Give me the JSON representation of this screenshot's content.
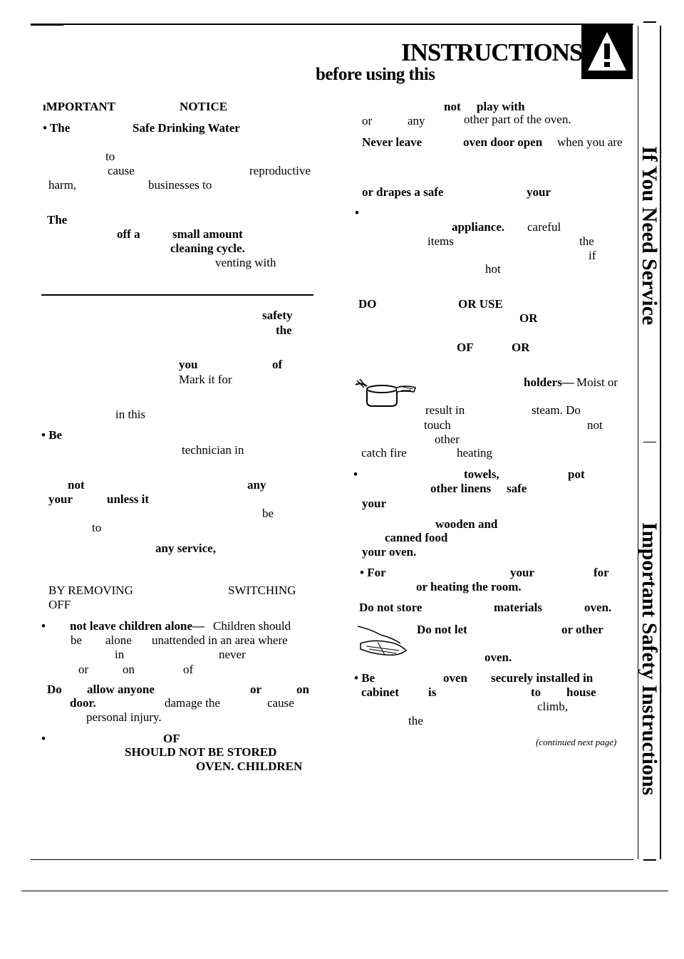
{
  "header": {
    "title": "INSTRUCTIONS",
    "subtitle": "before using this"
  },
  "warning_icon": {
    "symbol": "!"
  },
  "sidebar": {
    "service_label": "If You Need Service",
    "safety_label": "Important Safety Instructions"
  },
  "left_column": [
    {
      "text": "ıMPORTANT",
      "bold": true
    },
    {
      "text": "NOTICE",
      "bold": true
    },
    {
      "text": "• The",
      "bold": true
    },
    {
      "text": "Safe Drinking Water",
      "bold": true
    },
    {
      "text": "to",
      "bold": false
    },
    {
      "text": "cause",
      "bold": false
    },
    {
      "text": "reproductive",
      "bold": false
    },
    {
      "text": "harm,",
      "bold": false
    },
    {
      "text": "businesses to",
      "bold": false
    },
    {
      "text": "The",
      "bold": true
    },
    {
      "text": "off a",
      "bold": true
    },
    {
      "text": "small amount",
      "bold": true
    },
    {
      "text": "cleaning cycle.",
      "bold": true
    },
    {
      "text": "venting with",
      "bold": false
    },
    {
      "text": "safety",
      "bold": true
    },
    {
      "text": "the",
      "bold": true
    },
    {
      "text": "you",
      "bold": true
    },
    {
      "text": "of",
      "bold": true
    },
    {
      "text": "Mark it for",
      "bold": false
    },
    {
      "text": "in this",
      "bold": false
    },
    {
      "text": "• Be",
      "bold": true
    },
    {
      "text": "technician in",
      "bold": false
    },
    {
      "text": "not",
      "bold": true
    },
    {
      "text": "any",
      "bold": true
    },
    {
      "text": "your",
      "bold": true
    },
    {
      "text": "unless it",
      "bold": true
    },
    {
      "text": "be",
      "bold": false
    },
    {
      "text": "to",
      "bold": false
    },
    {
      "text": "any service,",
      "bold": true
    },
    {
      "text": "BY REMOVING",
      "bold": false
    },
    {
      "text": "SWITCHING",
      "bold": false
    },
    {
      "text": "OFF",
      "bold": false
    },
    {
      "text": "•",
      "bold": true
    },
    {
      "text": "not leave children alone—",
      "bold": true
    },
    {
      "text": "Children should",
      "bold": false
    },
    {
      "text": "be",
      "bold": false
    },
    {
      "text": "alone",
      "bold": false
    },
    {
      "text": "unattended in an area where",
      "bold": false
    },
    {
      "text": "in",
      "bold": false
    },
    {
      "text": "never",
      "bold": false
    },
    {
      "text": "or",
      "bold": false
    },
    {
      "text": "on",
      "bold": false
    },
    {
      "text": "of",
      "bold": false
    },
    {
      "text": "Do",
      "bold": true
    },
    {
      "text": "allow anyone",
      "bold": true
    },
    {
      "text": "or",
      "bold": true
    },
    {
      "text": "on",
      "bold": true
    },
    {
      "text": "door.",
      "bold": true
    },
    {
      "text": "damage the",
      "bold": false
    },
    {
      "text": "cause",
      "bold": false
    },
    {
      "text": "personal injury.",
      "bold": false
    },
    {
      "text": "•",
      "bold": true
    },
    {
      "text": "OF",
      "bold": true
    },
    {
      "text": "SHOULD NOT BE STORED",
      "bold": true
    },
    {
      "text": "OVEN. CHILDREN",
      "bold": true
    }
  ],
  "right_column": [
    {
      "text": "not",
      "bold": true
    },
    {
      "text": "play with",
      "bold": true
    },
    {
      "text": "or",
      "bold": false
    },
    {
      "text": "any",
      "bold": false
    },
    {
      "text": "other part of the oven.",
      "bold": false
    },
    {
      "text": "Never leave",
      "bold": true
    },
    {
      "text": "oven door open",
      "bold": true
    },
    {
      "text": "when you are",
      "bold": false
    },
    {
      "text": "or drapes a safe",
      "bold": true
    },
    {
      "text": "your",
      "bold": true
    },
    {
      "text": "•",
      "bold": true
    },
    {
      "text": "appliance.",
      "bold": true
    },
    {
      "text": "careful",
      "bold": false
    },
    {
      "text": "items",
      "bold": false
    },
    {
      "text": "the",
      "bold": false
    },
    {
      "text": "if",
      "bold": false
    },
    {
      "text": "hot",
      "bold": false
    },
    {
      "text": "DO",
      "bold": true
    },
    {
      "text": "OR USE",
      "bold": true
    },
    {
      "text": "OR",
      "bold": true
    },
    {
      "text": "OF",
      "bold": true
    },
    {
      "text": "OR",
      "bold": true
    },
    {
      "text": "holders—",
      "bold": true
    },
    {
      "text": "Moist or",
      "bold": false
    },
    {
      "text": "result in",
      "bold": false
    },
    {
      "text": "steam. Do",
      "bold": false
    },
    {
      "text": "touch",
      "bold": false
    },
    {
      "text": "not",
      "bold": false
    },
    {
      "text": "other",
      "bold": false
    },
    {
      "text": "catch fire",
      "bold": false
    },
    {
      "text": "heating",
      "bold": false
    },
    {
      "text": "•",
      "bold": true
    },
    {
      "text": "towels,",
      "bold": true
    },
    {
      "text": "pot",
      "bold": true
    },
    {
      "text": "other linens",
      "bold": true
    },
    {
      "text": "safe",
      "bold": true
    },
    {
      "text": "your",
      "bold": true
    },
    {
      "text": "wooden and",
      "bold": true
    },
    {
      "text": "canned food",
      "bold": true
    },
    {
      "text": "your oven.",
      "bold": true
    },
    {
      "text": "• For",
      "bold": true
    },
    {
      "text": "your",
      "bold": true
    },
    {
      "text": "for",
      "bold": true
    },
    {
      "text": "or heating the room.",
      "bold": true
    },
    {
      "text": "Do not store",
      "bold": true
    },
    {
      "text": "materials",
      "bold": true
    },
    {
      "text": "oven.",
      "bold": true
    },
    {
      "text": "Do not let",
      "bold": true
    },
    {
      "text": "or other",
      "bold": true
    },
    {
      "text": "oven.",
      "bold": true
    },
    {
      "text": "• Be",
      "bold": true
    },
    {
      "text": "oven",
      "bold": true
    },
    {
      "text": "securely installed in",
      "bold": true
    },
    {
      "text": "cabinet",
      "bold": true
    },
    {
      "text": "is",
      "bold": true
    },
    {
      "text": "to",
      "bold": true
    },
    {
      "text": "house",
      "bold": true
    },
    {
      "text": "climb,",
      "bold": false
    },
    {
      "text": "the",
      "bold": false
    },
    {
      "text": "(continued next page)",
      "bold": false,
      "italic": true
    }
  ]
}
